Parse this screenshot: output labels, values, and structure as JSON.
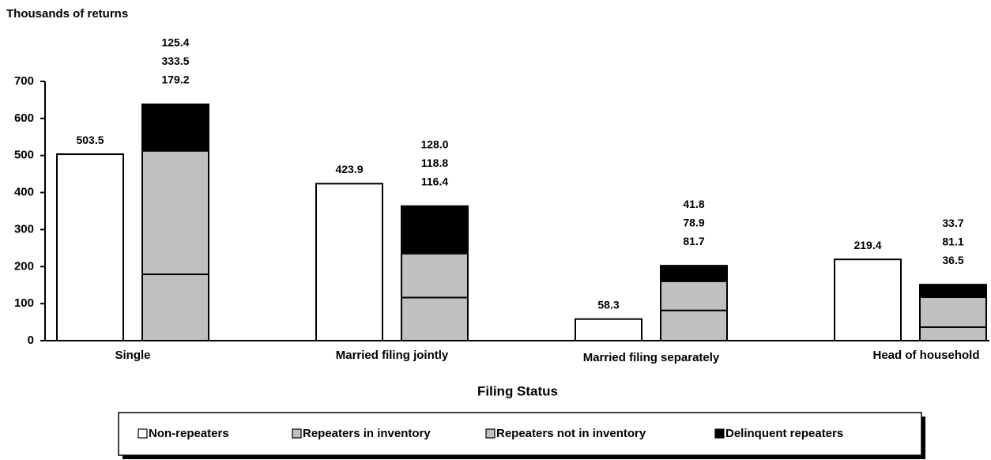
{
  "chart_data": {
    "type": "bar",
    "y_label": "Thousands of returns",
    "x_label": "Filing Status",
    "categories": [
      "Single",
      "Married filing jointly",
      "Married filing separately",
      "Head of household"
    ],
    "ylim": [
      0,
      700
    ],
    "yticks": [
      0,
      100,
      200,
      300,
      400,
      500,
      600,
      700
    ],
    "series": [
      {
        "name": "Non-repeaters",
        "color": "#ffffff",
        "stack": "a",
        "values": [
          503.5,
          423.9,
          58.3,
          219.4
        ],
        "value_labels": [
          "503.5",
          "423.9",
          "58.3",
          "219.4"
        ]
      },
      {
        "name": "Repeaters in inventory",
        "color": "#c0c0c0",
        "stack": "b",
        "values": [
          179.2,
          116.4,
          81.7,
          36.5
        ],
        "value_labels": [
          "179.2",
          "116.4",
          "81.7",
          "36.5"
        ]
      },
      {
        "name": "Repeaters not in inventory",
        "color": "#c0c0c0",
        "stack": "b",
        "values": [
          333.5,
          118.8,
          78.9,
          81.1
        ],
        "value_labels": [
          "333.5",
          "118.8",
          "78.9",
          "81.1"
        ]
      },
      {
        "name": "Delinquent repeaters",
        "color": "#000000",
        "stack": "b",
        "values": [
          125.4,
          128.0,
          41.8,
          33.7
        ],
        "value_labels": [
          "125.4",
          "128.0",
          "41.8",
          "33.7"
        ]
      }
    ]
  }
}
